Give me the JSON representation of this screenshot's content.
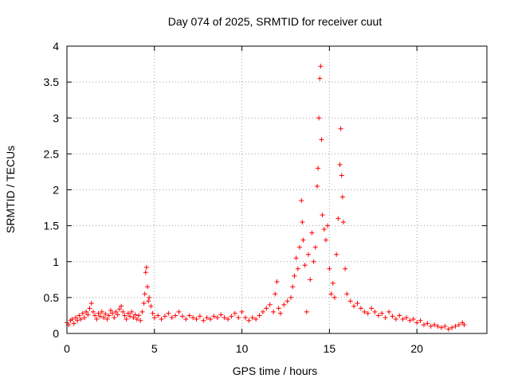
{
  "chart_data": {
    "type": "scatter",
    "title": "Day 074 of 2025, SRMTID for receiver cuut",
    "xlabel": "GPS time / hours",
    "ylabel": "SRMTID / TECUs",
    "xlim": [
      0,
      24
    ],
    "ylim": [
      0,
      4
    ],
    "xticks": [
      0,
      5,
      10,
      15,
      20
    ],
    "yticks": [
      0,
      0.5,
      1,
      1.5,
      2,
      2.5,
      3,
      3.5,
      4
    ],
    "x_tick_labels": [
      "0",
      "5",
      "10",
      "15",
      "20"
    ],
    "y_tick_labels": [
      "0",
      "0.5",
      "1",
      "1.5",
      "2",
      "2.5",
      "3",
      "3.5",
      "4"
    ],
    "grid": true,
    "marker": "+",
    "color": "#ff0000",
    "series": [
      {
        "name": "SRMTID",
        "points": [
          [
            0.0,
            0.15
          ],
          [
            0.1,
            0.12
          ],
          [
            0.2,
            0.18
          ],
          [
            0.3,
            0.2
          ],
          [
            0.4,
            0.14
          ],
          [
            0.5,
            0.22
          ],
          [
            0.6,
            0.18
          ],
          [
            0.7,
            0.25
          ],
          [
            0.8,
            0.2
          ],
          [
            0.9,
            0.28
          ],
          [
            1.0,
            0.22
          ],
          [
            1.1,
            0.3
          ],
          [
            1.2,
            0.26
          ],
          [
            1.3,
            0.35
          ],
          [
            1.4,
            0.42
          ],
          [
            1.5,
            0.3
          ],
          [
            1.6,
            0.25
          ],
          [
            1.7,
            0.2
          ],
          [
            1.8,
            0.28
          ],
          [
            1.9,
            0.24
          ],
          [
            2.0,
            0.3
          ],
          [
            2.1,
            0.22
          ],
          [
            2.2,
            0.27
          ],
          [
            2.3,
            0.2
          ],
          [
            2.4,
            0.25
          ],
          [
            2.5,
            0.32
          ],
          [
            2.6,
            0.28
          ],
          [
            2.7,
            0.22
          ],
          [
            2.8,
            0.3
          ],
          [
            2.9,
            0.26
          ],
          [
            3.0,
            0.34
          ],
          [
            3.1,
            0.38
          ],
          [
            3.2,
            0.3
          ],
          [
            3.3,
            0.25
          ],
          [
            3.4,
            0.2
          ],
          [
            3.5,
            0.28
          ],
          [
            3.6,
            0.24
          ],
          [
            3.7,
            0.3
          ],
          [
            3.8,
            0.22
          ],
          [
            3.9,
            0.26
          ],
          [
            4.0,
            0.2
          ],
          [
            4.1,
            0.25
          ],
          [
            4.2,
            0.18
          ],
          [
            4.3,
            0.3
          ],
          [
            4.4,
            0.42
          ],
          [
            4.45,
            0.55
          ],
          [
            4.5,
            0.85
          ],
          [
            4.55,
            0.92
          ],
          [
            4.6,
            0.65
          ],
          [
            4.65,
            0.45
          ],
          [
            4.7,
            0.5
          ],
          [
            4.8,
            0.38
          ],
          [
            4.9,
            0.28
          ],
          [
            5.0,
            0.22
          ],
          [
            5.2,
            0.25
          ],
          [
            5.4,
            0.2
          ],
          [
            5.6,
            0.24
          ],
          [
            5.8,
            0.28
          ],
          [
            6.0,
            0.22
          ],
          [
            6.2,
            0.25
          ],
          [
            6.4,
            0.3
          ],
          [
            6.6,
            0.24
          ],
          [
            6.8,
            0.2
          ],
          [
            7.0,
            0.25
          ],
          [
            7.2,
            0.22
          ],
          [
            7.4,
            0.2
          ],
          [
            7.6,
            0.24
          ],
          [
            7.8,
            0.18
          ],
          [
            8.0,
            0.22
          ],
          [
            8.2,
            0.2
          ],
          [
            8.4,
            0.24
          ],
          [
            8.6,
            0.22
          ],
          [
            8.8,
            0.26
          ],
          [
            9.0,
            0.22
          ],
          [
            9.2,
            0.2
          ],
          [
            9.4,
            0.24
          ],
          [
            9.6,
            0.28
          ],
          [
            9.8,
            0.22
          ],
          [
            10.0,
            0.3
          ],
          [
            10.2,
            0.22
          ],
          [
            10.4,
            0.18
          ],
          [
            10.6,
            0.22
          ],
          [
            10.8,
            0.2
          ],
          [
            11.0,
            0.25
          ],
          [
            11.2,
            0.3
          ],
          [
            11.4,
            0.35
          ],
          [
            11.6,
            0.4
          ],
          [
            11.8,
            0.3
          ],
          [
            11.9,
            0.55
          ],
          [
            12.0,
            0.72
          ],
          [
            12.1,
            0.35
          ],
          [
            12.2,
            0.28
          ],
          [
            12.4,
            0.4
          ],
          [
            12.6,
            0.45
          ],
          [
            12.8,
            0.5
          ],
          [
            12.9,
            0.65
          ],
          [
            13.0,
            0.8
          ],
          [
            13.1,
            1.05
          ],
          [
            13.2,
            0.9
          ],
          [
            13.3,
            1.2
          ],
          [
            13.4,
            1.85
          ],
          [
            13.45,
            1.55
          ],
          [
            13.5,
            1.3
          ],
          [
            13.6,
            0.95
          ],
          [
            13.7,
            0.3
          ],
          [
            13.8,
            1.1
          ],
          [
            13.9,
            0.75
          ],
          [
            14.0,
            1.4
          ],
          [
            14.1,
            1.0
          ],
          [
            14.2,
            1.2
          ],
          [
            14.3,
            2.05
          ],
          [
            14.35,
            2.3
          ],
          [
            14.4,
            3.0
          ],
          [
            14.45,
            3.55
          ],
          [
            14.5,
            3.72
          ],
          [
            14.55,
            2.7
          ],
          [
            14.6,
            1.65
          ],
          [
            14.7,
            1.45
          ],
          [
            14.8,
            1.3
          ],
          [
            14.9,
            1.5
          ],
          [
            15.0,
            0.9
          ],
          [
            15.1,
            0.55
          ],
          [
            15.2,
            0.7
          ],
          [
            15.3,
            0.5
          ],
          [
            15.4,
            1.1
          ],
          [
            15.5,
            1.6
          ],
          [
            15.6,
            2.35
          ],
          [
            15.65,
            2.85
          ],
          [
            15.7,
            2.2
          ],
          [
            15.75,
            1.9
          ],
          [
            15.8,
            1.55
          ],
          [
            15.9,
            0.9
          ],
          [
            16.0,
            0.55
          ],
          [
            16.2,
            0.45
          ],
          [
            16.4,
            0.38
          ],
          [
            16.6,
            0.42
          ],
          [
            16.8,
            0.35
          ],
          [
            17.0,
            0.3
          ],
          [
            17.2,
            0.28
          ],
          [
            17.4,
            0.35
          ],
          [
            17.6,
            0.3
          ],
          [
            17.8,
            0.25
          ],
          [
            18.0,
            0.28
          ],
          [
            18.2,
            0.22
          ],
          [
            18.4,
            0.3
          ],
          [
            18.6,
            0.24
          ],
          [
            18.8,
            0.2
          ],
          [
            19.0,
            0.25
          ],
          [
            19.2,
            0.2
          ],
          [
            19.4,
            0.22
          ],
          [
            19.6,
            0.18
          ],
          [
            19.8,
            0.2
          ],
          [
            20.0,
            0.15
          ],
          [
            20.2,
            0.18
          ],
          [
            20.4,
            0.12
          ],
          [
            20.6,
            0.14
          ],
          [
            20.8,
            0.1
          ],
          [
            21.0,
            0.12
          ],
          [
            21.2,
            0.1
          ],
          [
            21.4,
            0.08
          ],
          [
            21.6,
            0.1
          ],
          [
            21.8,
            0.06
          ],
          [
            22.0,
            0.08
          ],
          [
            22.2,
            0.1
          ],
          [
            22.4,
            0.12
          ],
          [
            22.6,
            0.15
          ],
          [
            22.7,
            0.12
          ]
        ]
      }
    ]
  }
}
